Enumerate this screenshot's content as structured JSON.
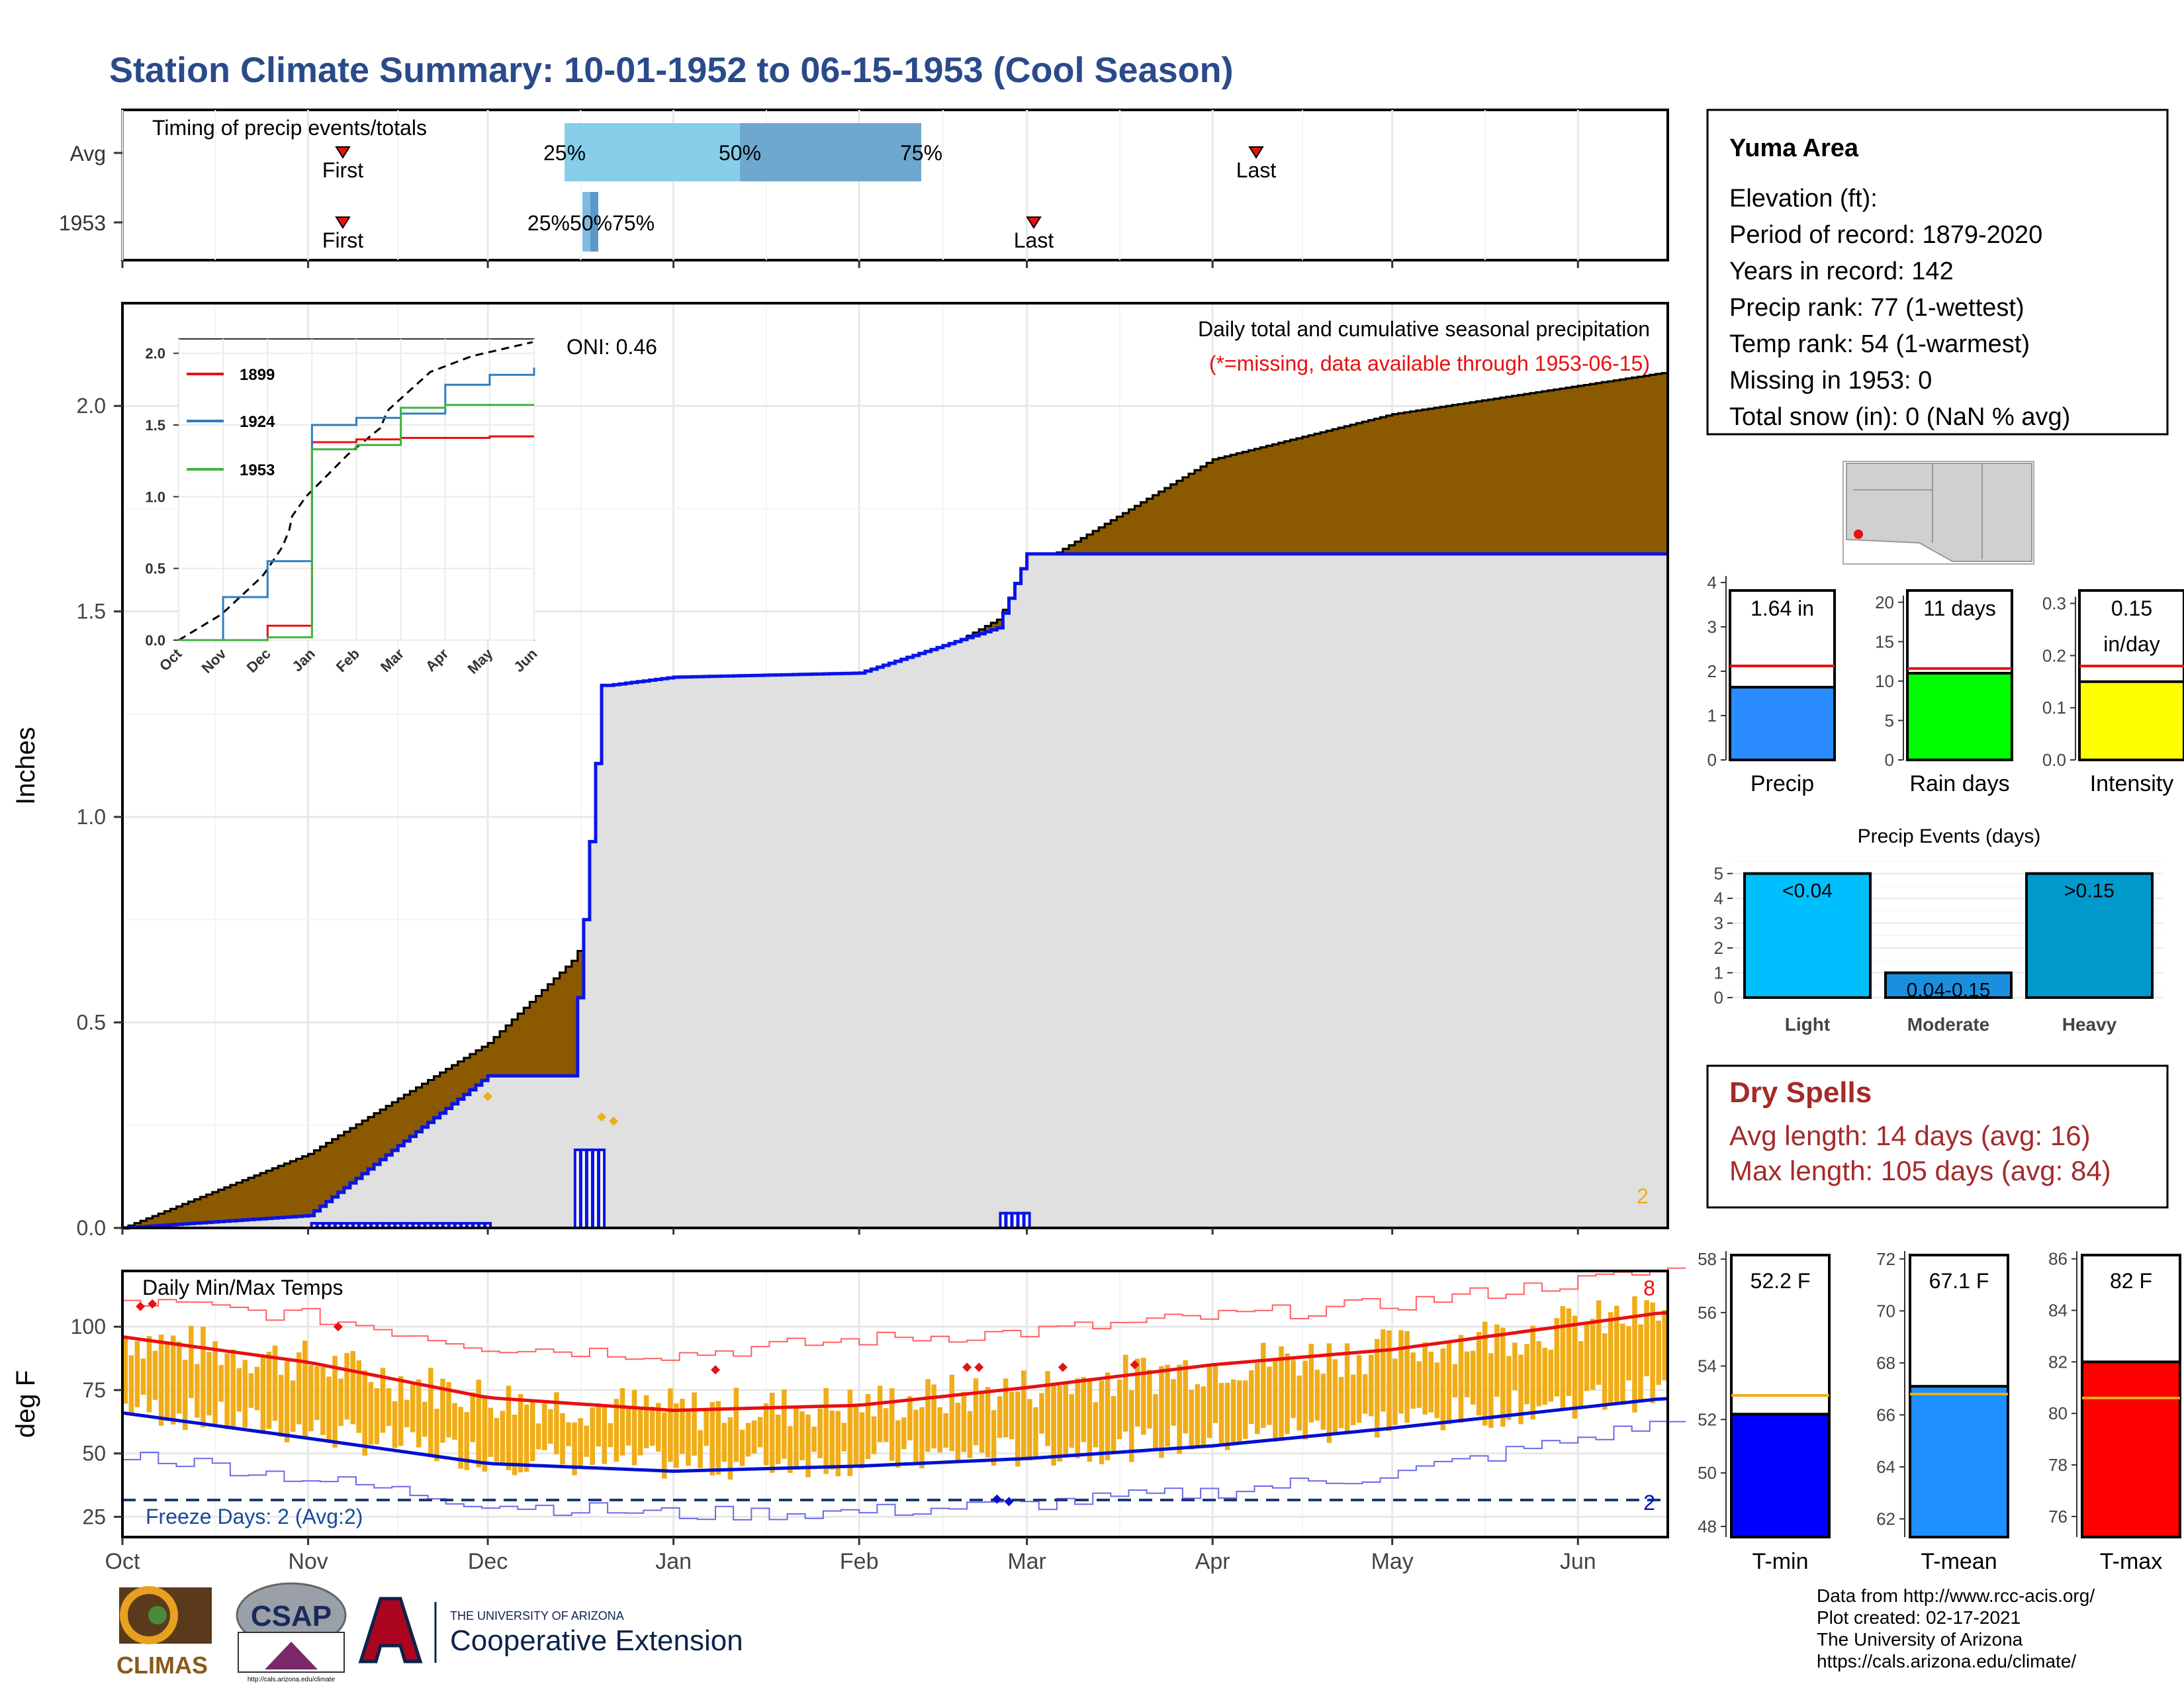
{
  "title": "Station Climate Summary: 10-01-1952 to 06-15-1953 (Cool Season)",
  "timing_panel": {
    "title": "Timing of precip events/totals",
    "rows": [
      "Avg",
      "1953"
    ],
    "avg": {
      "first": "First",
      "last": "Last",
      "p25": "25%",
      "p50": "50%",
      "p75": "75%"
    },
    "y1953": {
      "first": "First",
      "last": "Last",
      "overlap_labels": "25%50%75%"
    }
  },
  "station_box": {
    "name": "Yuma Area",
    "lines": [
      "Elevation (ft):",
      "Period of record: 1879-2020",
      "Years in record: 142",
      "Precip rank: 77 (1-wettest)",
      "Temp rank: 54 (1-warmest)",
      "Missing in 1953: 0",
      "Total snow (in): 0 (NaN % avg)"
    ]
  },
  "precip_panel": {
    "ylabel": "Inches",
    "oni": "ONI: 0.46",
    "title": "Daily total and cumulative seasonal precipitation",
    "missing_note": "(*=missing, data available through 1953-06-15)",
    "corner_count": "2",
    "yticks": [
      "0.0",
      "0.5",
      "1.0",
      "1.5",
      "2.0"
    ]
  },
  "inset": {
    "legend": [
      "1899",
      "1924",
      "1953"
    ],
    "yticks": [
      "0.0",
      "0.5",
      "1.0",
      "1.5",
      "2.0"
    ],
    "xticks": [
      "Oct",
      "Nov",
      "Dec",
      "Jan",
      "Feb",
      "Mar",
      "Apr",
      "May",
      "Jun"
    ]
  },
  "temp_panel": {
    "ylabel": "deg F",
    "title": "Daily Min/Max Temps",
    "freeze": "Freeze Days: 2 (Avg:2)",
    "hot_count": "8",
    "cold_count": "2",
    "yticks": [
      "25",
      "50",
      "75",
      "100"
    ]
  },
  "month_axis": [
    "Oct",
    "Nov",
    "Dec",
    "Jan",
    "Feb",
    "Mar",
    "Apr",
    "May",
    "Jun"
  ],
  "small_bars": {
    "precip": {
      "value_label": "1.64 in",
      "axis_label": "Precip",
      "yticks": [
        "0",
        "1",
        "2",
        "3",
        "4"
      ]
    },
    "rain_days": {
      "value_label": "11 days",
      "axis_label": "Rain days",
      "yticks": [
        "0",
        "5",
        "10",
        "15",
        "20"
      ]
    },
    "intensity": {
      "value_label1": "0.15",
      "value_label2": "in/day",
      "axis_label": "Intensity",
      "yticks": [
        "0.0",
        "0.1",
        "0.2",
        "0.3"
      ]
    }
  },
  "events": {
    "title": "Precip Events (days)",
    "categories": [
      "Light",
      "Moderate",
      "Heavy"
    ],
    "bar_labels": [
      "<0.04",
      "0.04-0.15",
      ">0.15"
    ],
    "yticks": [
      "0",
      "1",
      "2",
      "3",
      "4",
      "5"
    ]
  },
  "dry_spells": {
    "title": "Dry Spells",
    "avg_line": "Avg length: 14 days (avg: 16)",
    "max_line": "Max length: 105 days (avg: 84)"
  },
  "temp_bars": {
    "tmin": {
      "value_label": "52.2 F",
      "axis_label": "T-min",
      "yticks": [
        "48",
        "50",
        "52",
        "54",
        "56",
        "58"
      ]
    },
    "tmean": {
      "value_label": "67.1 F",
      "axis_label": "T-mean",
      "yticks": [
        "62",
        "64",
        "66",
        "68",
        "70",
        "72"
      ]
    },
    "tmax": {
      "value_label": "82 F",
      "axis_label": "T-max",
      "yticks": [
        "76",
        "78",
        "80",
        "82",
        "84",
        "86"
      ]
    }
  },
  "logos": {
    "climas": "CLIMAS",
    "csap": "CSAP",
    "csap_url": "http://cals.arizona.edu/climate",
    "ua_small": "THE UNIVERSITY OF ARIZONA",
    "ua_big": "Cooperative Extension"
  },
  "credits": [
    "Data from http://www.rcc-acis.org/",
    "Plot created: 02-17-2021",
    "The University of Arizona",
    "https://cals.arizona.edu/climate/"
  ],
  "colors": {
    "title": "#2a4a8a",
    "brown": "#8b5a00",
    "green": "#008000",
    "gray_fill": "#e0e0e0",
    "blue_line": "#0a14e6",
    "orange": "#f0ad18",
    "red": "#e81010",
    "precip_bar": "#2a8cff",
    "rain_bar": "#00ff00",
    "intensity_bar": "#ffff00",
    "light_bar": "#00bfff",
    "moderate_bar": "#1a8fe0",
    "heavy_bar": "#0099cc",
    "dry_text": "#a52a2a",
    "tmin_bar": "#0000ff",
    "tmean_bar": "#1e90ff",
    "tmax_bar": "#ff0000"
  },
  "chart_data": [
    {
      "type": "area",
      "name": "cumulative seasonal precipitation",
      "x": [
        "10-01",
        "11-01",
        "12-01",
        "12-15",
        "12-20",
        "12-21",
        "01-01",
        "02-01",
        "02-24",
        "03-01",
        "04-01",
        "05-01",
        "06-15"
      ],
      "series": [
        {
          "name": "Avg",
          "values": [
            0.0,
            0.18,
            0.45,
            0.65,
            0.77,
            0.85,
            1.0,
            1.3,
            1.48,
            1.6,
            1.87,
            1.98,
            2.08
          ]
        },
        {
          "name": "1953",
          "values": [
            0.0,
            0.03,
            0.37,
            0.37,
            1.32,
            1.32,
            1.34,
            1.35,
            1.46,
            1.64,
            1.64,
            1.64,
            1.64
          ]
        }
      ],
      "ylim": [
        0,
        2.25
      ]
    },
    {
      "type": "line",
      "name": "inset cumulative",
      "x": [
        "Oct",
        "Nov",
        "Dec",
        "Jan",
        "Feb",
        "Mar",
        "Apr",
        "May",
        "Jun"
      ],
      "series": [
        {
          "name": "1899",
          "values": [
            0.0,
            0.0,
            0.1,
            1.38,
            1.4,
            1.41,
            1.41,
            1.42,
            1.42
          ]
        },
        {
          "name": "1924",
          "values": [
            0.0,
            0.3,
            0.55,
            1.5,
            1.55,
            1.58,
            1.78,
            1.85,
            1.9
          ]
        },
        {
          "name": "1953",
          "values": [
            0.0,
            0.0,
            0.02,
            1.33,
            1.36,
            1.62,
            1.64,
            1.64,
            1.64
          ]
        }
      ],
      "ylim": [
        0,
        2.1
      ]
    },
    {
      "type": "line",
      "name": "daily temperatures",
      "x": [
        "Oct",
        "Nov",
        "Dec",
        "Jan",
        "Feb",
        "Mar",
        "Apr",
        "May",
        "Jun"
      ],
      "series": [
        {
          "name": "avg max",
          "values": [
            96,
            86,
            72,
            67,
            69,
            76,
            85,
            91,
            101
          ]
        },
        {
          "name": "avg min",
          "values": [
            66,
            56,
            46,
            43,
            45,
            48,
            53,
            60,
            68
          ]
        },
        {
          "name": "record max",
          "values": [
            110,
            104,
            92,
            89,
            95,
            98,
            104,
            109,
            118
          ]
        },
        {
          "name": "record min",
          "values": [
            50,
            40,
            30,
            26,
            27,
            30,
            35,
            42,
            56
          ]
        }
      ],
      "ylim": [
        17,
        122
      ]
    },
    {
      "type": "bar",
      "name": "seasonal totals",
      "categories": [
        "Precip",
        "Rain days",
        "Intensity"
      ],
      "values": [
        1.64,
        11,
        0.15
      ],
      "averages": [
        2.12,
        11.6,
        0.18
      ]
    },
    {
      "type": "bar",
      "name": "Precip Events (days)",
      "categories": [
        "Light",
        "Moderate",
        "Heavy"
      ],
      "values": [
        5,
        1,
        5
      ]
    },
    {
      "type": "bar",
      "name": "seasonal temperatures",
      "categories": [
        "T-min",
        "T-mean",
        "T-max"
      ],
      "values": [
        52.2,
        67.1,
        82
      ],
      "averages": [
        52.9,
        66.8,
        80.6
      ]
    }
  ]
}
